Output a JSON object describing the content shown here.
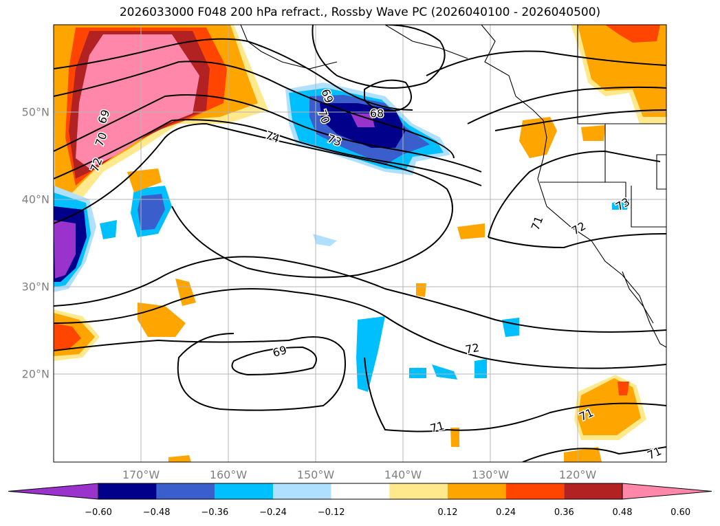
{
  "title": "2026033000 F048 200 hPa refract., Rossby Wave PC (2026040100 - 2026040500)",
  "latitude_labels": [
    "50°N",
    "40°N",
    "30°N",
    "20°N"
  ],
  "longitude_labels": [
    "170°W",
    "160°W",
    "150°W",
    "140°W",
    "130°W",
    "120°W"
  ],
  "contour_labels": [
    "69",
    "70",
    "72",
    "74",
    "73",
    "69",
    "68",
    "70",
    "69",
    "72",
    "71",
    "72",
    "71",
    "71",
    "71",
    "73"
  ],
  "colorbar": {
    "ticks": [
      "−0.60",
      "−0.48",
      "−0.36",
      "−0.24",
      "−0.12",
      "0.12",
      "0.24",
      "0.36",
      "0.48",
      "0.60"
    ],
    "colors": [
      "#9933cc",
      "#00008b",
      "#3a5fcd",
      "#00bfff",
      "#b0e0ff",
      "#ffffff",
      "#ffe98c",
      "#ffa500",
      "#ff4500",
      "#b22222",
      "#ff88aa"
    ]
  }
}
